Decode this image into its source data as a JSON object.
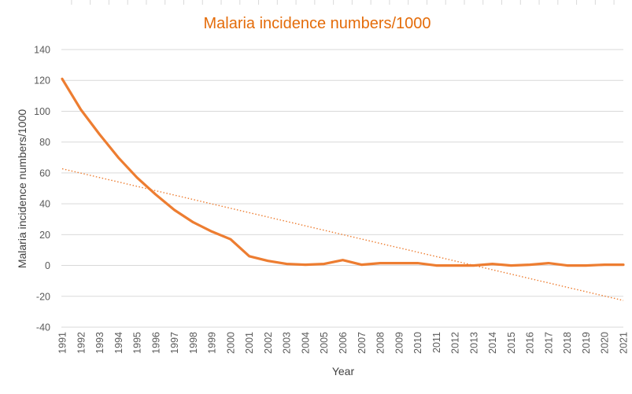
{
  "chart_data": {
    "type": "line",
    "title": "Malaria incidence numbers/1000",
    "xlabel": "Year",
    "ylabel": "Malaria incidence numbers/1000",
    "x": [
      "1991",
      "1992",
      "1993",
      "1994",
      "1995",
      "1996",
      "1997",
      "1998",
      "1999",
      "2000",
      "2001",
      "2002",
      "2003",
      "2004",
      "2005",
      "2006",
      "2007",
      "2008",
      "2009",
      "2010",
      "2011",
      "2012",
      "2013",
      "2014",
      "2015",
      "2016",
      "2017",
      "2018",
      "2019",
      "2020",
      "2021"
    ],
    "yticks": [
      "140",
      "120",
      "100",
      "80",
      "60",
      "40",
      "20",
      "0",
      "-20",
      "-40"
    ],
    "ylim": [
      -40,
      140
    ],
    "grid": true,
    "series": [
      {
        "values": [
          121,
          101,
          85,
          70,
          57,
          46,
          36,
          28,
          22,
          17,
          6,
          3,
          1,
          0.5,
          1,
          3.5,
          0.5,
          1.5,
          1.5,
          1.5,
          0,
          0,
          0,
          1,
          0,
          0.5,
          1.5,
          0,
          0,
          0.5,
          0.5
        ],
        "color": "#ED7D31"
      }
    ],
    "trendline": {
      "type": "linear",
      "style": "dotted",
      "color": "#ED7D31",
      "start": 62.7,
      "end": -22.7
    },
    "title_color": "#E46C0A",
    "gridline_color": "#D9D9D9"
  }
}
